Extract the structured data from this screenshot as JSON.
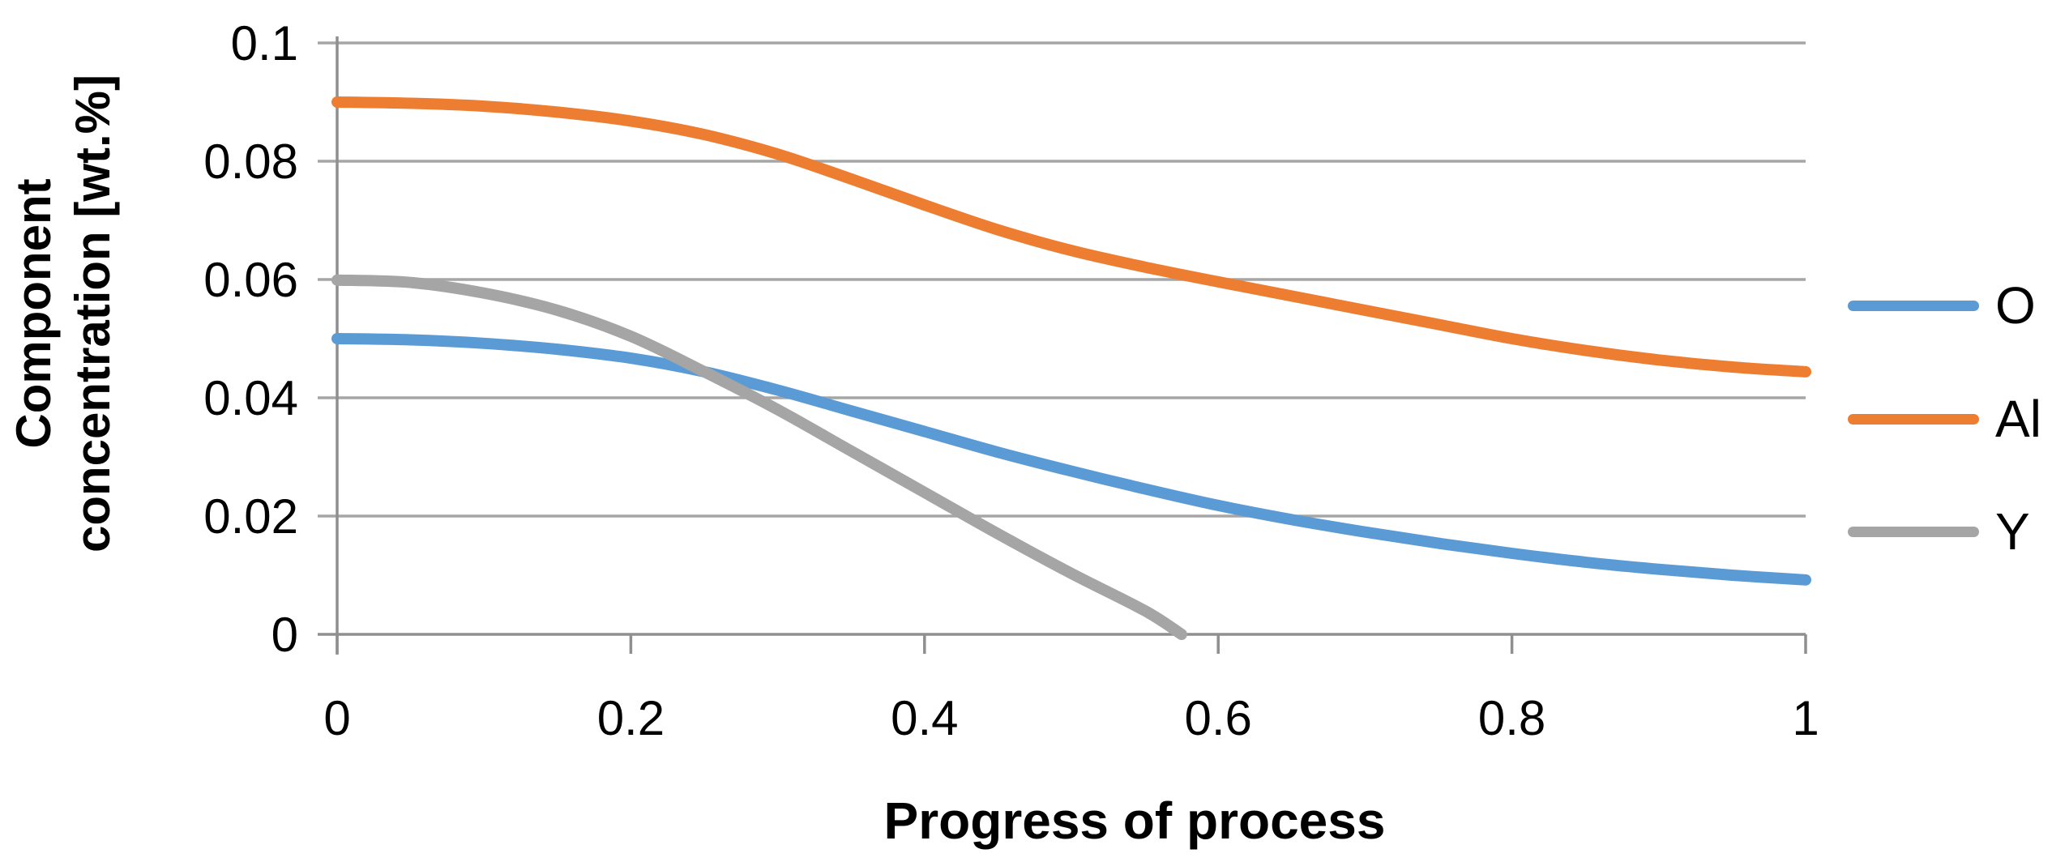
{
  "chart_data": {
    "type": "line",
    "title": "",
    "xlabel": "Progress of process",
    "ylabel": "Component concentration [wt.%]",
    "ylabel_lines": [
      "Component",
      "concentration [wt.%]"
    ],
    "xlim": [
      0,
      1
    ],
    "ylim": [
      0,
      0.1
    ],
    "grid": "horizontal",
    "legend_position": "right",
    "grid_color": "#a6a6a6",
    "axis_color": "#8f8f8f",
    "x_ticks": {
      "values": [
        0,
        0.2,
        0.4,
        0.6,
        0.8,
        1
      ],
      "labels": [
        "0",
        "0.2",
        "0.4",
        "0.6",
        "0.8",
        "1"
      ]
    },
    "y_ticks": {
      "values": [
        0,
        0.02,
        0.04,
        0.06,
        0.08,
        0.1
      ],
      "labels": [
        "0",
        "0.02",
        "0.04",
        "0.06",
        "0.08",
        "0.1"
      ]
    },
    "series": [
      {
        "name": "O",
        "color": "#5B9BD5",
        "points": [
          [
            0,
            0.05
          ],
          [
            0.05,
            0.0498
          ],
          [
            0.1,
            0.0492
          ],
          [
            0.15,
            0.0482
          ],
          [
            0.2,
            0.0467
          ],
          [
            0.25,
            0.0444
          ],
          [
            0.3,
            0.0413
          ],
          [
            0.35,
            0.0378
          ],
          [
            0.4,
            0.0343
          ],
          [
            0.45,
            0.0308
          ],
          [
            0.5,
            0.0276
          ],
          [
            0.55,
            0.0246
          ],
          [
            0.6,
            0.0218
          ],
          [
            0.65,
            0.0194
          ],
          [
            0.7,
            0.0173
          ],
          [
            0.75,
            0.0154
          ],
          [
            0.8,
            0.0137
          ],
          [
            0.85,
            0.0122
          ],
          [
            0.9,
            0.011
          ],
          [
            0.95,
            0.01
          ],
          [
            1,
            0.0092
          ]
        ]
      },
      {
        "name": "Al",
        "color": "#ED7D31",
        "points": [
          [
            0,
            0.09
          ],
          [
            0.05,
            0.0898
          ],
          [
            0.1,
            0.0893
          ],
          [
            0.15,
            0.0883
          ],
          [
            0.2,
            0.0868
          ],
          [
            0.25,
            0.0845
          ],
          [
            0.3,
            0.0812
          ],
          [
            0.35,
            0.077
          ],
          [
            0.4,
            0.0726
          ],
          [
            0.45,
            0.0684
          ],
          [
            0.5,
            0.0649
          ],
          [
            0.55,
            0.0621
          ],
          [
            0.6,
            0.0596
          ],
          [
            0.65,
            0.0572
          ],
          [
            0.7,
            0.0548
          ],
          [
            0.75,
            0.0524
          ],
          [
            0.8,
            0.05
          ],
          [
            0.85,
            0.048
          ],
          [
            0.9,
            0.0464
          ],
          [
            0.95,
            0.0452
          ],
          [
            1,
            0.0444
          ]
        ]
      },
      {
        "name": "Y",
        "color": "#A5A5A5",
        "points": [
          [
            0,
            0.0599
          ],
          [
            0.05,
            0.0595
          ],
          [
            0.1,
            0.0577
          ],
          [
            0.15,
            0.0548
          ],
          [
            0.2,
            0.0504
          ],
          [
            0.25,
            0.0444
          ],
          [
            0.3,
            0.038
          ],
          [
            0.35,
            0.031
          ],
          [
            0.4,
            0.024
          ],
          [
            0.45,
            0.017
          ],
          [
            0.5,
            0.0103
          ],
          [
            0.55,
            0.004
          ],
          [
            0.575,
            0.0
          ]
        ]
      }
    ]
  },
  "legend": {
    "items": [
      {
        "label": "O"
      },
      {
        "label": "Al"
      },
      {
        "label": "Y"
      }
    ]
  }
}
